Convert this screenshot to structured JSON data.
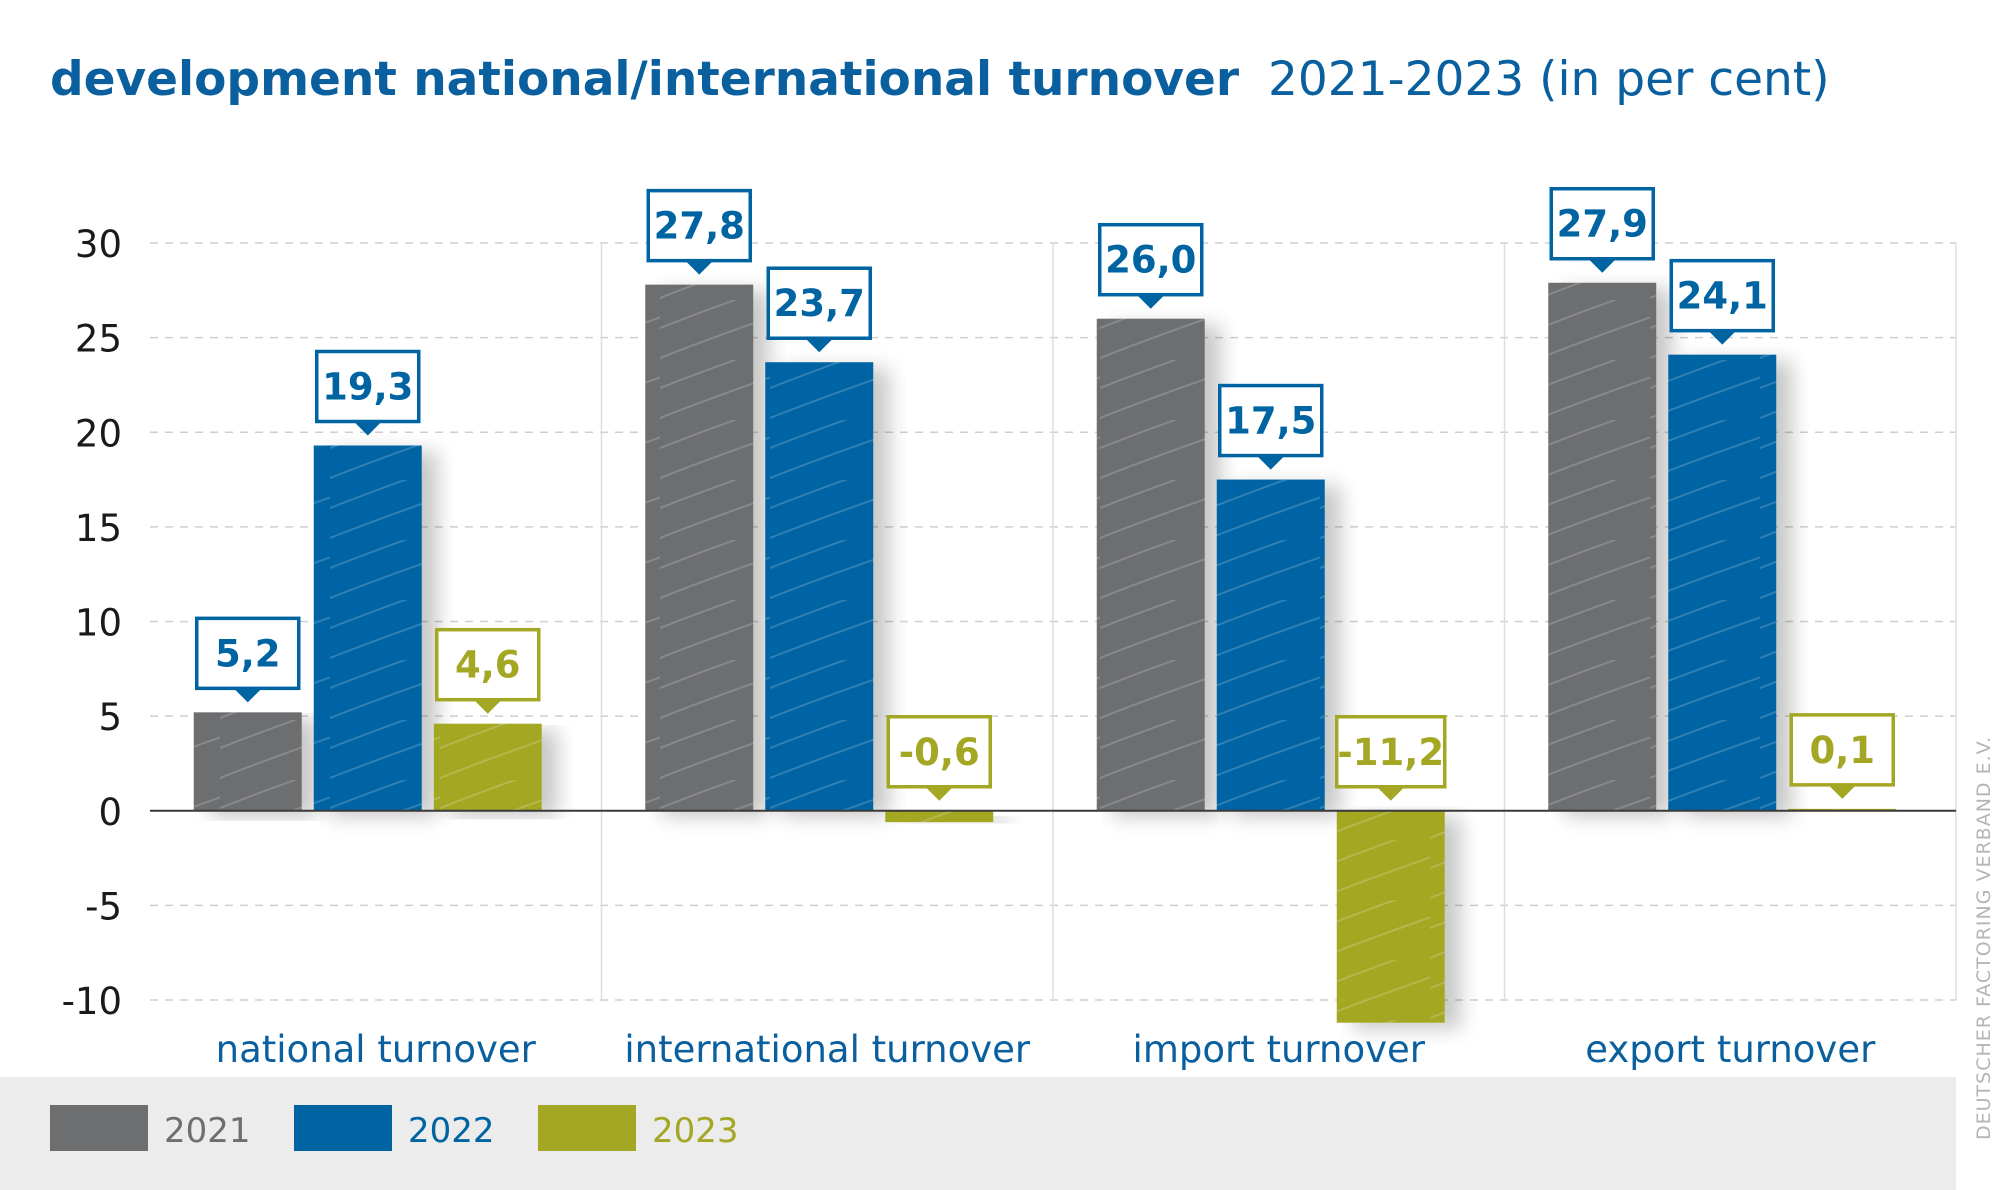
{
  "title_bold": "development national/international turnover",
  "title_rest": "2021-2023 (in per cent)",
  "credit": "DEUTSCHER FACTORING VERBAND E.V.",
  "colors": {
    "title": "#0a5f9e",
    "series_2021": "#6d6e70",
    "series_2022": "#0064a3",
    "series_2023": "#a4a724",
    "legend_bg": "#ececec",
    "grid": "#cfcfcf",
    "axis_text": "#1a1a1a"
  },
  "chart_data": {
    "type": "bar",
    "categories": [
      "national turnover",
      "international turnover",
      "import turnover",
      "export turnover"
    ],
    "series": [
      {
        "name": "2021",
        "values": [
          5.2,
          27.8,
          26.0,
          27.9
        ],
        "labels": [
          "5,2",
          "27,8",
          "26,0",
          "27,9"
        ]
      },
      {
        "name": "2022",
        "values": [
          19.3,
          23.7,
          17.5,
          24.1
        ],
        "labels": [
          "19,3",
          "23,7",
          "17,5",
          "24,1"
        ]
      },
      {
        "name": "2023",
        "values": [
          4.6,
          -0.6,
          -11.2,
          0.1
        ],
        "labels": [
          "4,6",
          "-0,6",
          "-11,2",
          "0,1"
        ]
      }
    ],
    "ylim": [
      -10,
      30
    ],
    "yticks": [
      "30",
      "25",
      "20",
      "15",
      "10",
      "5",
      "0",
      "-5",
      "-10"
    ],
    "ytick_values": [
      30,
      25,
      20,
      15,
      10,
      5,
      0,
      -5,
      -10
    ],
    "grid": true,
    "legend_position": "bottom-left"
  }
}
